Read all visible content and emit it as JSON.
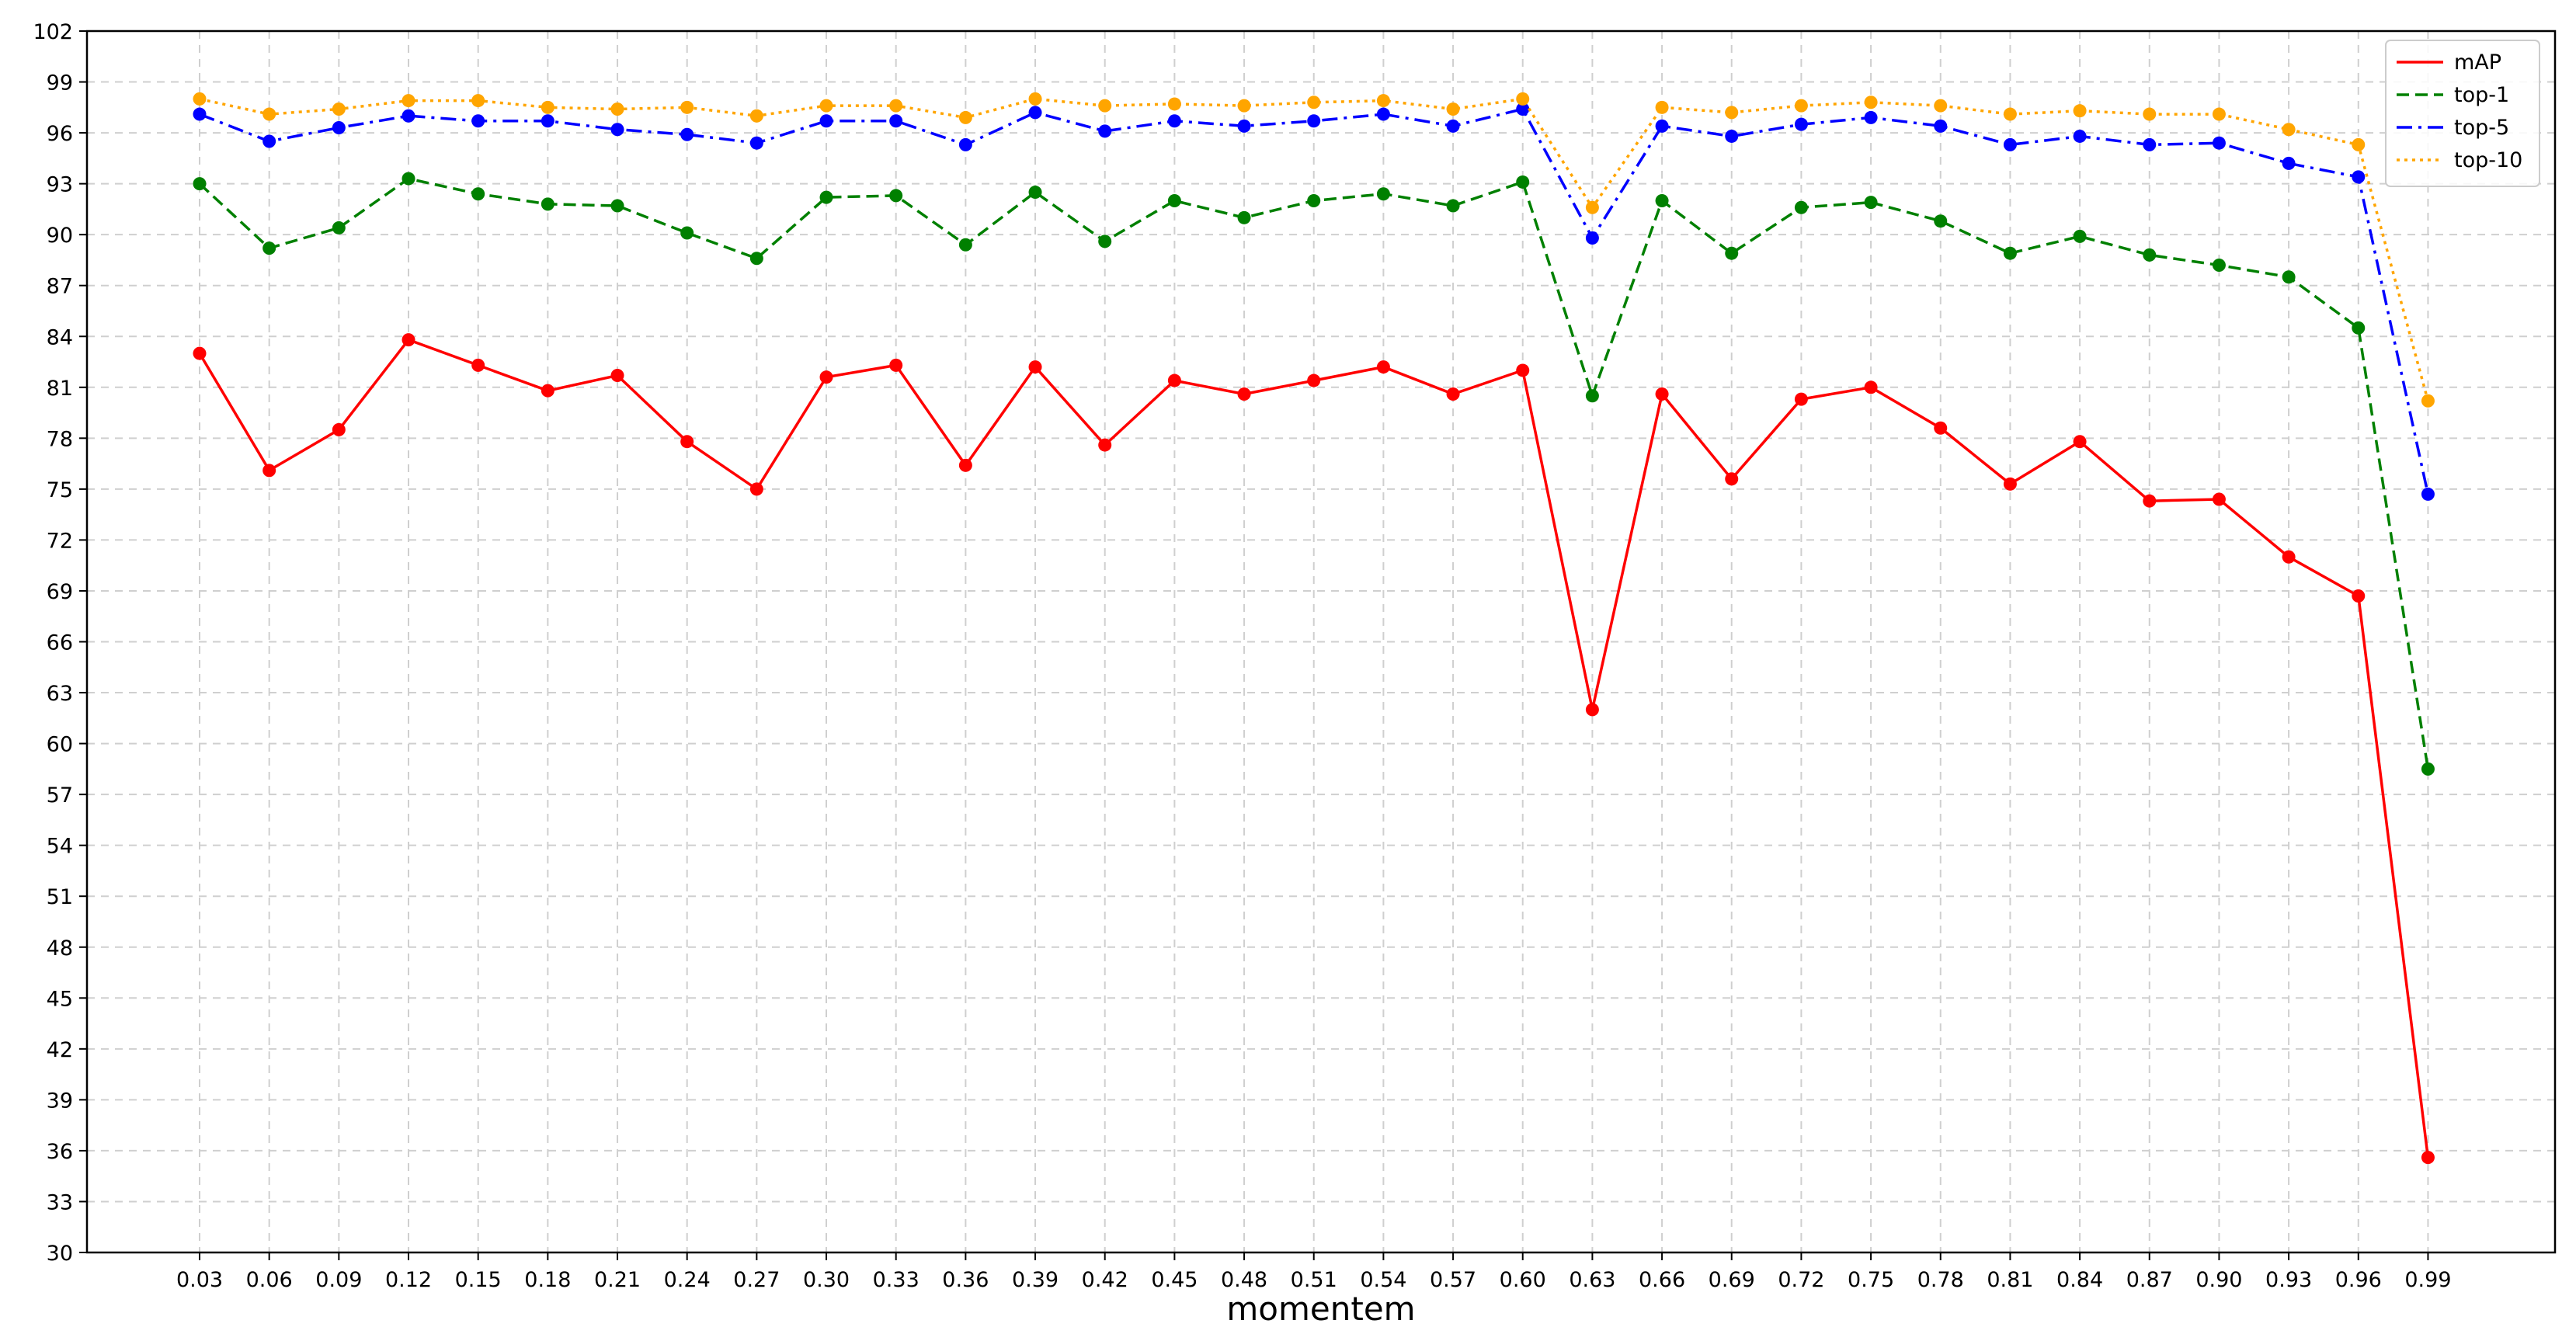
{
  "chart_data": {
    "type": "line",
    "title": "",
    "xlabel": "momentem",
    "ylabel": "",
    "categories": [
      "0.03",
      "0.06",
      "0.09",
      "0.12",
      "0.15",
      "0.18",
      "0.21",
      "0.24",
      "0.27",
      "0.30",
      "0.33",
      "0.36",
      "0.39",
      "0.42",
      "0.45",
      "0.48",
      "0.51",
      "0.54",
      "0.57",
      "0.60",
      "0.63",
      "0.66",
      "0.69",
      "0.72",
      "0.75",
      "0.78",
      "0.81",
      "0.84",
      "0.87",
      "0.90",
      "0.93",
      "0.96",
      "0.99"
    ],
    "ylim": [
      30,
      102
    ],
    "yticks": [
      "30",
      "33",
      "36",
      "39",
      "42",
      "45",
      "48",
      "51",
      "54",
      "57",
      "60",
      "63",
      "66",
      "69",
      "72",
      "75",
      "78",
      "81",
      "84",
      "87",
      "90",
      "93",
      "96",
      "99",
      "102"
    ],
    "grid": true,
    "legend_position": "top-right",
    "series": [
      {
        "name": "mAP",
        "color": "#ff0000",
        "dash": "solid",
        "values": [
          83.0,
          76.1,
          78.5,
          83.8,
          82.3,
          80.8,
          81.7,
          77.8,
          75.0,
          81.6,
          82.3,
          76.4,
          82.2,
          77.6,
          81.4,
          80.6,
          81.4,
          82.2,
          80.6,
          82.0,
          62.0,
          80.6,
          75.6,
          80.3,
          81.0,
          78.6,
          75.3,
          77.8,
          74.3,
          74.4,
          71.0,
          68.7,
          35.6
        ]
      },
      {
        "name": "top-1",
        "color": "#008000",
        "dash": "dashed",
        "values": [
          93.0,
          89.2,
          90.4,
          93.3,
          92.4,
          91.8,
          91.7,
          90.1,
          88.6,
          92.2,
          92.3,
          89.4,
          92.5,
          89.6,
          92.0,
          91.0,
          92.0,
          92.4,
          91.7,
          93.1,
          80.5,
          92.0,
          88.9,
          91.6,
          91.9,
          90.8,
          88.9,
          89.9,
          88.8,
          88.2,
          87.5,
          84.5,
          58.5
        ]
      },
      {
        "name": "top-5",
        "color": "#0000ff",
        "dash": "dashdot",
        "values": [
          97.1,
          95.5,
          96.3,
          97.0,
          96.7,
          96.7,
          96.2,
          95.9,
          95.4,
          96.7,
          96.7,
          95.3,
          97.2,
          96.1,
          96.7,
          96.4,
          96.7,
          97.1,
          96.4,
          97.4,
          89.8,
          96.4,
          95.8,
          96.5,
          96.9,
          96.4,
          95.3,
          95.8,
          95.3,
          95.4,
          94.2,
          93.4,
          74.7
        ]
      },
      {
        "name": "top-10",
        "color": "#ffa500",
        "dash": "dotted",
        "values": [
          98.0,
          97.1,
          97.4,
          97.9,
          97.9,
          97.5,
          97.4,
          97.5,
          97.0,
          97.6,
          97.6,
          96.9,
          98.0,
          97.6,
          97.7,
          97.6,
          97.8,
          97.9,
          97.4,
          98.0,
          91.6,
          97.5,
          97.2,
          97.6,
          97.8,
          97.6,
          97.1,
          97.3,
          97.1,
          97.1,
          96.2,
          95.3,
          80.2
        ]
      }
    ]
  }
}
